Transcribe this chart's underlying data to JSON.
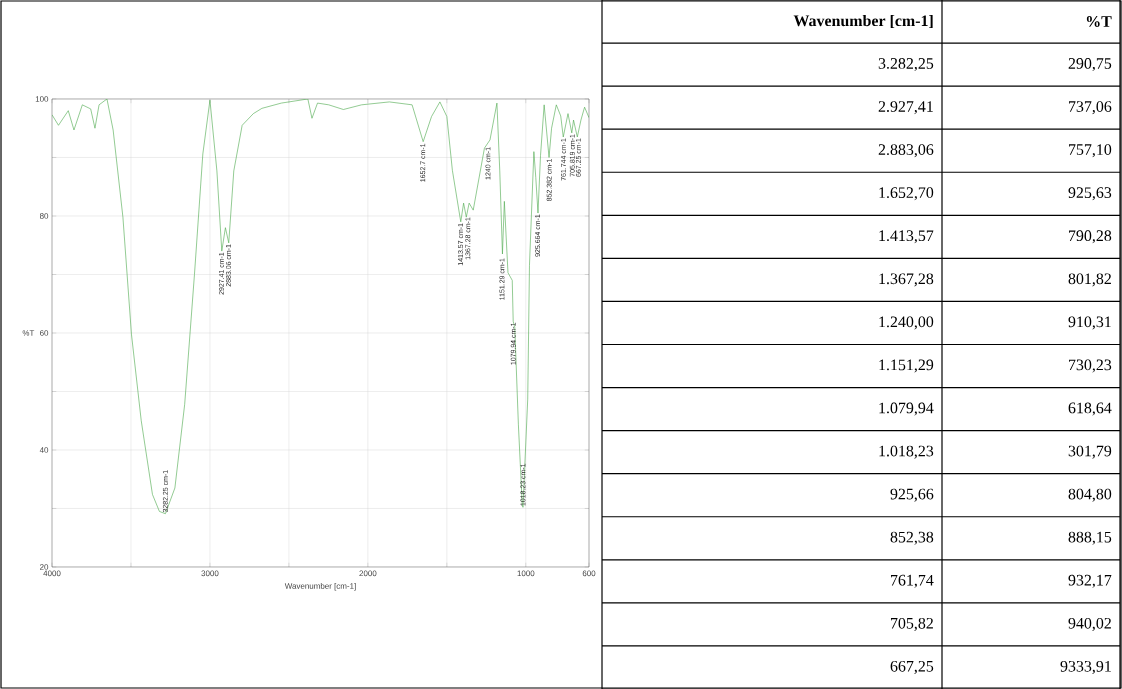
{
  "chart_data": [
    {
      "type": "line",
      "xlabel": "Wavenumber [cm-1]",
      "ylabel": "%T",
      "xlim": [
        4000,
        600
      ],
      "ylim": [
        20,
        100
      ],
      "xticks": [
        4000,
        {
          "value": 3500,
          "label": null
        },
        3000,
        {
          "value": 2500,
          "label": null
        },
        2000,
        {
          "value": 1500,
          "label": null
        },
        1000,
        600
      ],
      "yticks": [
        20,
        {
          "value": 30,
          "label": null
        },
        40,
        {
          "value": 50,
          "label": null
        },
        60,
        {
          "value": 70,
          "label": null
        },
        80,
        {
          "value": 90,
          "label": null
        },
        100
      ],
      "grid": true,
      "series": [
        {
          "color": "#4aa84a",
          "x": [
            4000,
            3959,
            3897,
            3861,
            3808,
            3755,
            3728,
            3702,
            3652,
            3613,
            3551,
            3497,
            3435,
            3364,
            3320,
            3282,
            3222,
            3160,
            3098,
            3045,
            3000,
            2956,
            2925,
            2902,
            2881,
            2849,
            2796,
            2725,
            2671,
            2548,
            2380,
            2354,
            2319,
            2248,
            2155,
            2040,
            1864,
            1720,
            1650,
            1597,
            1544,
            1500,
            1465,
            1412,
            1394,
            1377,
            1359,
            1333,
            1262,
            1227,
            1183,
            1165,
            1148,
            1136,
            1113,
            1086,
            1080,
            1070,
            1047,
            1023,
            1018,
            988,
            977,
            949,
            937,
            923,
            907,
            884,
            853,
            837,
            807,
            779,
            763,
            733,
            709,
            698,
            674,
            651,
            628,
            600
          ],
          "values": [
            97.3,
            95.5,
            98,
            94.7,
            99,
            98.3,
            95,
            99,
            100,
            94.7,
            79.8,
            59.8,
            45,
            32.4,
            29.5,
            29.1,
            33.5,
            47.8,
            70,
            90.6,
            99.8,
            87.7,
            74,
            78,
            75.4,
            87.7,
            95.5,
            97.5,
            98.4,
            99.3,
            100,
            96.7,
            99.3,
            99,
            98.2,
            99,
            99.5,
            99,
            92.7,
            97,
            99.5,
            97,
            87.8,
            79,
            82.2,
            79.8,
            82.2,
            81,
            91.6,
            93,
            99.3,
            87.7,
            73.5,
            82.5,
            70.3,
            69,
            62,
            61,
            44.3,
            30.8,
            30.2,
            48.7,
            71.5,
            91,
            86.6,
            80.5,
            90.3,
            99,
            90,
            95,
            99,
            97.1,
            93.5,
            97.5,
            94.2,
            96.4,
            93.5,
            96.4,
            98.6,
            96.8
          ]
        }
      ],
      "annotations": [
        {
          "text": "3282.25 cm-1",
          "x": 3282.25,
          "y": 29.1
        },
        {
          "text": "2927.41 cm-1",
          "x": 2927.41,
          "y": 74
        },
        {
          "text": "2883.06 cm-1",
          "x": 2883.06,
          "y": 75.4
        },
        {
          "text": "1652.7 cm-1",
          "x": 1652.7,
          "y": 92.6
        },
        {
          "text": "1413.57 cm-1",
          "x": 1413.57,
          "y": 79
        },
        {
          "text": "1367.28 cm-1",
          "x": 1367.28,
          "y": 80
        },
        {
          "text": "1240 cm-1",
          "x": 1240,
          "y": 92
        },
        {
          "text": "1151.29 cm-1",
          "x": 1151.29,
          "y": 73
        },
        {
          "text": "1079.94 cm-1",
          "x": 1079.94,
          "y": 62
        },
        {
          "text": "1018.23 cm-1",
          "x": 1018.23,
          "y": 30.2
        },
        {
          "text": "925.664 cm-1",
          "x": 925.664,
          "y": 80.5
        },
        {
          "text": "852.382 cm-1",
          "x": 852.382,
          "y": 90
        },
        {
          "text": "761.744 cm-1",
          "x": 761.744,
          "y": 93.5
        },
        {
          "text": "705.819 cm-1",
          "x": 705.819,
          "y": 94.2
        },
        {
          "text": "667.25 cm-1",
          "x": 667.25,
          "y": 93.5
        }
      ]
    },
    {
      "type": "other",
      "annotations": [
        "Wavenumber [cm-1]",
        "%T",
        "3.282,25",
        "290,75",
        "2.927,41",
        "737,06",
        "2.883,06",
        "757,10",
        "1.652,70",
        "925,63",
        "1.413,57",
        "790,28",
        "1.367,28",
        "801,82",
        "1.240,00",
        "910,31",
        "1.151,29",
        "730,23",
        "1.079,94",
        "618,64",
        "1.018,23",
        "301,79",
        "925,66",
        "804,80",
        "852,38",
        "888,15",
        "761,74",
        "932,17",
        "705,82",
        "940,02",
        "667,25",
        "9333,91"
      ]
    }
  ]
}
